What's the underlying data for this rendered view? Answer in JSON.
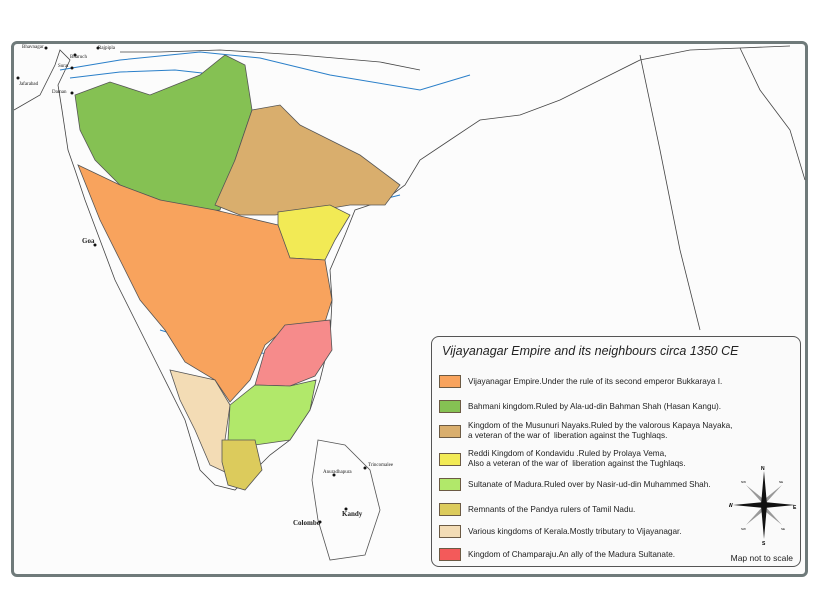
{
  "title": "Vijayanagar Empire and its neighbours circa 1350 CE",
  "scale_note": "Map not to scale",
  "legend": [
    {
      "label": "Vijayanagar Empire.Under the rule of its second emperor Bukkaraya I.",
      "color": "#f8a35d"
    },
    {
      "label": "Bahmani kingdom.Ruled by Ala-ud-din Bahman Shah (Hasan Kangu).",
      "color": "#85c153"
    },
    {
      "label": "Kingdom of the Musunuri Nayaks.Ruled by the valorous Kapaya Nayaka,\na veteran of the war of  liberation against the Tughlaqs.",
      "color": "#d9ae6d"
    },
    {
      "label": "Reddi Kingdom of Kondavidu .Ruled by Prolaya Vema,\nAlso a veteran of the war of  liberation against the Tughlaqs.",
      "color": "#f2ea55"
    },
    {
      "label": "Sultanate of Madura.Ruled over by Nasir-ud-din Muhammed Shah.",
      "color": "#b1e86a"
    },
    {
      "label": "Remnants of the Pandya rulers of Tamil Nadu.",
      "color": "#dccb5c"
    },
    {
      "label": "Various kingdoms of Kerala.Mostly tributary to Vijayanagar.",
      "color": "#f3dcb5"
    },
    {
      "label": "Kingdom of Champaraju.An ally of the Madura Sultanate.",
      "color": "#f35a5a"
    }
  ],
  "compass": {
    "n": "N",
    "s": "S",
    "e": "E",
    "w": "W",
    "ne": "NE",
    "nw": "NW",
    "se": "SE",
    "sw": "SW"
  },
  "places": {
    "bhavnagar": "Bhavnagar",
    "bharuch": "Bharuch",
    "rajpipla": "Rajpipla",
    "surat": "Surat",
    "jafarabad": "Jafarabad",
    "daman": "Daman",
    "goa": "Goa",
    "anuradhapura": "Anuradhapura",
    "kandy": "Kandy",
    "colombo": "Colombo",
    "trincomalee": "Trincomalee"
  },
  "colors": {
    "sea": "#fcfcfc",
    "river": "#2a7fc9",
    "coast": "#333333",
    "frame": "#6f7a7a"
  }
}
